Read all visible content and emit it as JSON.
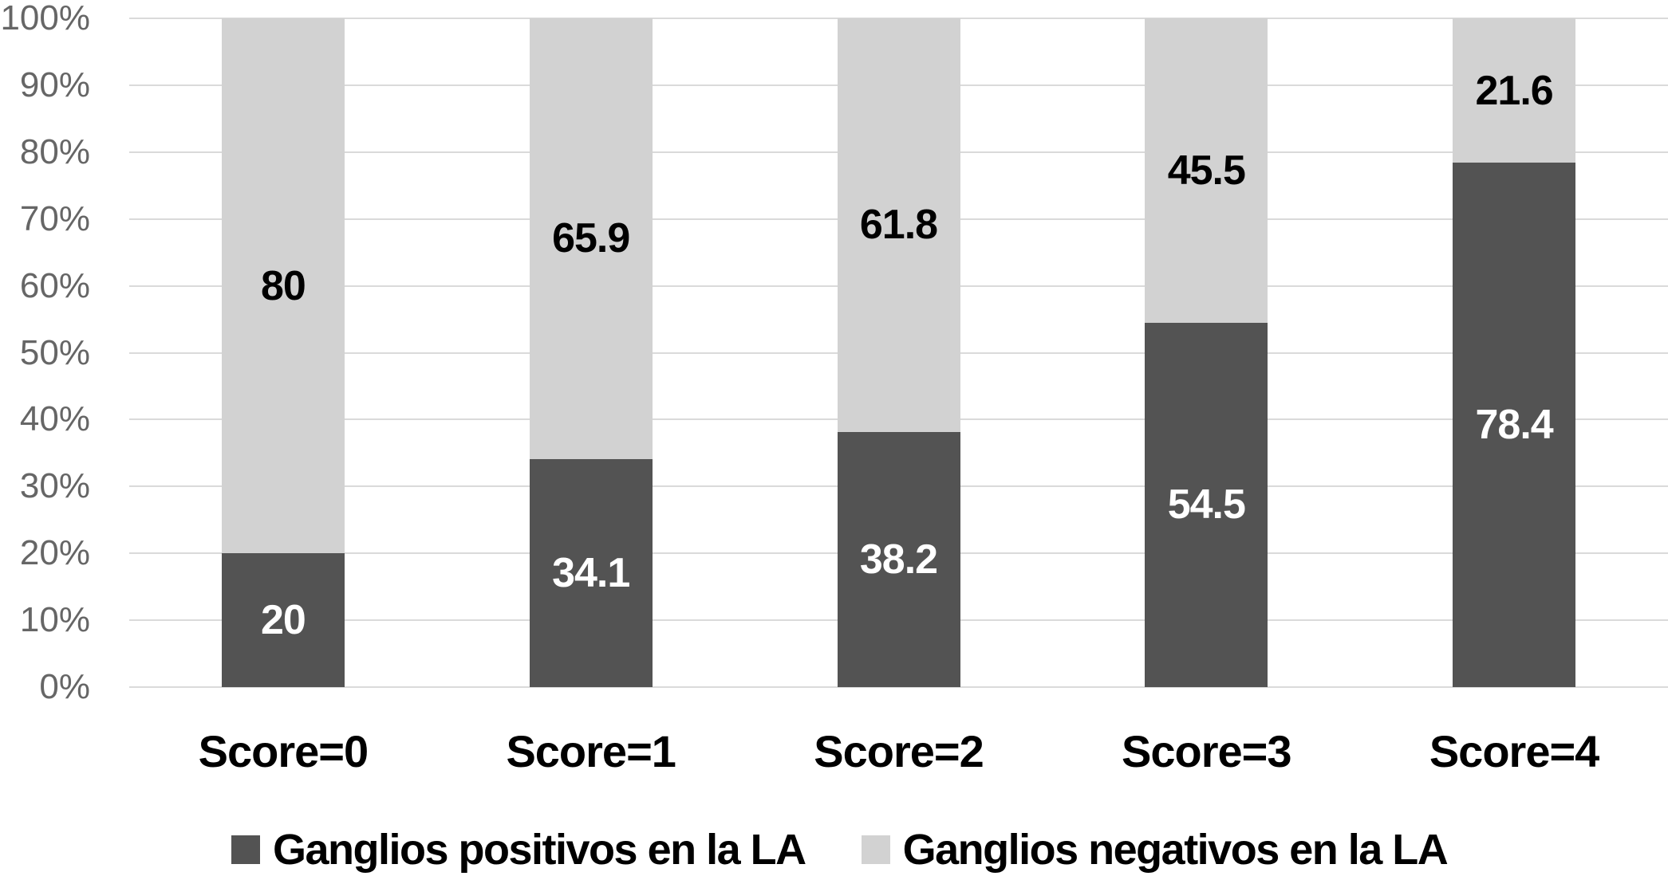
{
  "chart_data": {
    "type": "bar",
    "variant": "stacked-100-percent",
    "title": "",
    "xlabel": "",
    "ylabel": "",
    "grid": true,
    "legend_position": "bottom",
    "categories": [
      "Score=0",
      "Score=1",
      "Score=2",
      "Score=3",
      "Score=4"
    ],
    "series": [
      {
        "name": "Ganglios positivos en la LA",
        "color": "#535353",
        "label_color": "#ffffff",
        "values": [
          20,
          34.1,
          38.2,
          54.5,
          78.4
        ],
        "labels": [
          "20",
          "34.1",
          "38.2",
          "54.5",
          "78.4"
        ]
      },
      {
        "name": "Ganglios negativos en la LA",
        "color": "#d2d2d2",
        "label_color": "#000000",
        "values": [
          80,
          65.9,
          61.8,
          45.5,
          21.6
        ],
        "labels": [
          "80",
          "65.9",
          "61.8",
          "45.5",
          "21.6"
        ]
      }
    ],
    "y_axis": {
      "min": 0,
      "max": 100,
      "tick_step": 10,
      "ticks": [
        "0%",
        "10%",
        "20%",
        "30%",
        "40%",
        "50%",
        "60%",
        "70%",
        "80%",
        "90%",
        "100%"
      ]
    }
  },
  "styles": {
    "background": "#ffffff",
    "gridline_color": "#dadada",
    "axis_tick_color": "#666666"
  }
}
